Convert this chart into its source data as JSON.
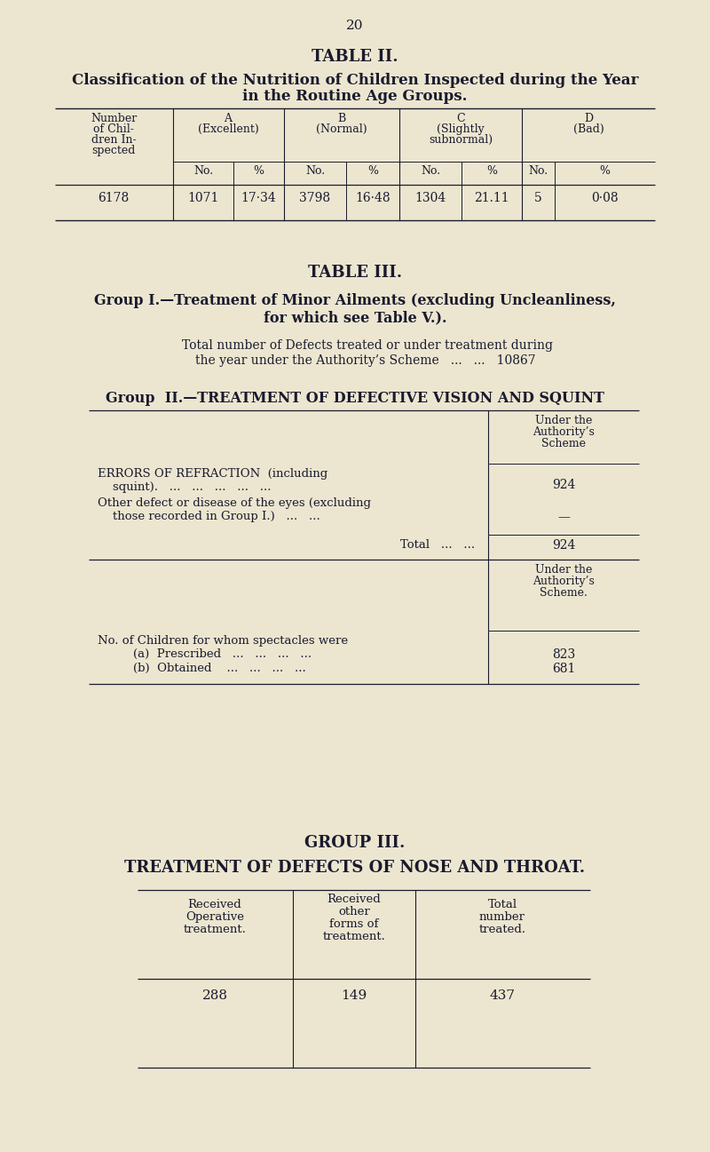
{
  "bg_color": "#ece6d0",
  "text_color": "#1a1a2e",
  "page_number": "20",
  "table2_data_row": [
    "6178",
    "1071",
    "17·34",
    "3798",
    "16·48",
    "1304",
    "21.11",
    "5",
    "0·08"
  ],
  "group3": {
    "val1": "288",
    "val2": "149",
    "val3": "437"
  }
}
